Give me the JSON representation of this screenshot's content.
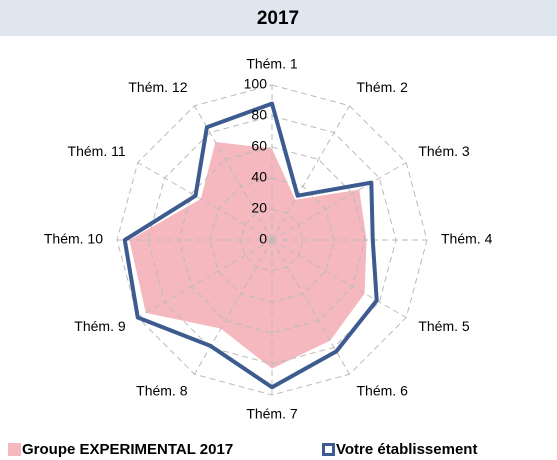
{
  "chart_data": {
    "type": "radar",
    "title": "2017",
    "categories": [
      "Thém. 1",
      "Thém. 2",
      "Thém. 3",
      "Thém. 4",
      "Thém. 5",
      "Thém. 6",
      "Thém. 7",
      "Thém. 8",
      "Thém. 9",
      "Thém. 10",
      "Thém. 11",
      "Thém. 12"
    ],
    "series": [
      {
        "name": "Groupe EXPERIMENTAL 2017",
        "color": "#f5b8bf",
        "style": "area",
        "values": [
          59,
          30,
          65,
          61,
          69,
          75,
          83,
          66,
          94,
          92,
          53,
          73
        ]
      },
      {
        "name": "Votre établissement",
        "color": "#3d5b8f",
        "style": "line",
        "values": [
          88,
          33,
          74,
          65,
          78,
          83,
          95,
          79,
          100,
          95,
          57,
          84
        ]
      }
    ],
    "ylim": [
      0,
      100
    ],
    "yticks": [
      0,
      20,
      40,
      60,
      80,
      100
    ],
    "grid": true,
    "legend": "bottom"
  }
}
